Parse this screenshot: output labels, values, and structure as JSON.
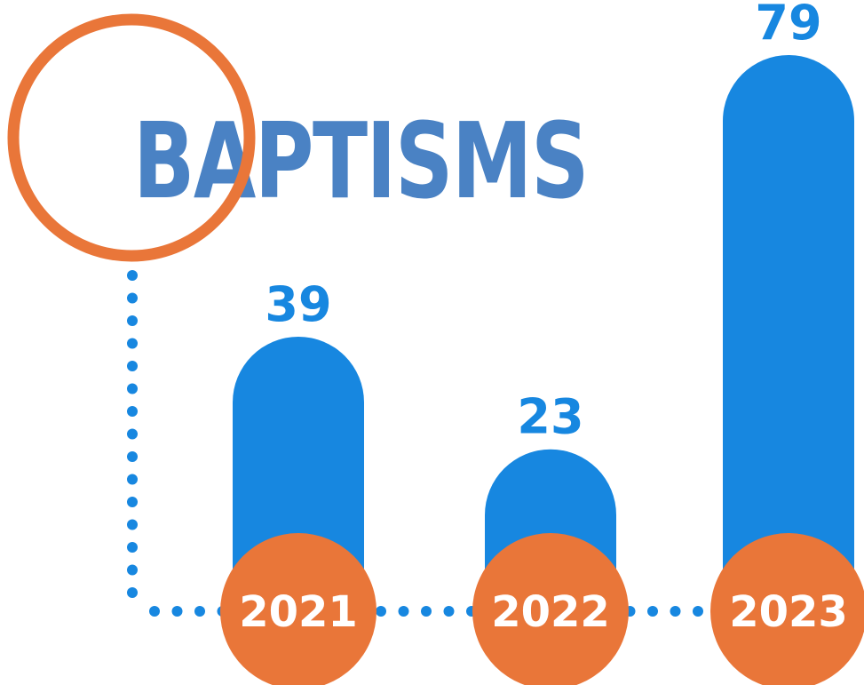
{
  "chart_data": {
    "type": "bar",
    "title": "BAPTISMS",
    "categories": [
      "2021",
      "2022",
      "2023"
    ],
    "values": [
      39,
      23,
      79
    ],
    "ylim": [
      0,
      79
    ],
    "legend": "none",
    "grid": false
  },
  "colors": {
    "bar": "#1787e0",
    "title": "#4a82c4",
    "accent": "#e97639",
    "dots": "#1787e0",
    "year_label": "#ffffff"
  }
}
